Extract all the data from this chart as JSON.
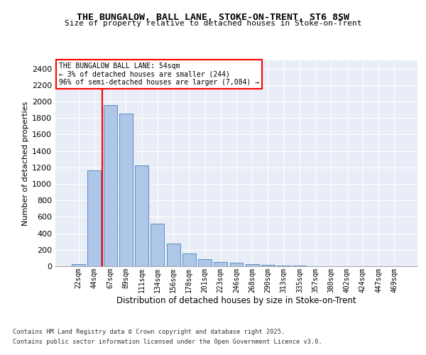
{
  "title": "THE BUNGALOW, BALL LANE, STOKE-ON-TRENT, ST6 8SW",
  "subtitle": "Size of property relative to detached houses in Stoke-on-Trent",
  "xlabel": "Distribution of detached houses by size in Stoke-on-Trent",
  "ylabel": "Number of detached properties",
  "categories": [
    "22sqm",
    "44sqm",
    "67sqm",
    "89sqm",
    "111sqm",
    "134sqm",
    "156sqm",
    "178sqm",
    "201sqm",
    "223sqm",
    "246sqm",
    "268sqm",
    "290sqm",
    "313sqm",
    "335sqm",
    "357sqm",
    "380sqm",
    "402sqm",
    "424sqm",
    "447sqm",
    "469sqm"
  ],
  "values": [
    28,
    1160,
    1960,
    1850,
    1225,
    515,
    275,
    155,
    90,
    50,
    40,
    28,
    18,
    10,
    5,
    3,
    2,
    0,
    0,
    0,
    0
  ],
  "bar_color": "#aec6e8",
  "bar_edge_color": "#5a8fc0",
  "bg_color": "#e8edf7",
  "grid_color": "#ffffff",
  "vline_color": "red",
  "annotation_line1": "THE BUNGALOW BALL LANE: 54sqm",
  "annotation_line2": "← 3% of detached houses are smaller (244)",
  "annotation_line3": "96% of semi-detached houses are larger (7,084) →",
  "annotation_box_color": "red",
  "footer_line1": "Contains HM Land Registry data © Crown copyright and database right 2025.",
  "footer_line2": "Contains public sector information licensed under the Open Government Licence v3.0.",
  "ylim": [
    0,
    2500
  ],
  "yticks": [
    0,
    200,
    400,
    600,
    800,
    1000,
    1200,
    1400,
    1600,
    1800,
    2000,
    2200,
    2400
  ]
}
